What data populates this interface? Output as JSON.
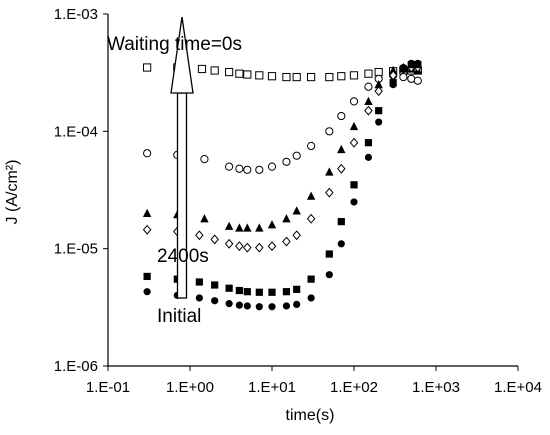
{
  "chart_data": {
    "type": "scatter",
    "title": "",
    "xlabel": "time(s)",
    "ylabel": "J (A/cm²)",
    "xscale": "log",
    "yscale": "log",
    "xlim": [
      0.1,
      10000
    ],
    "ylim": [
      1e-06,
      0.001
    ],
    "x_tick_labels": [
      "1.E-01",
      "1.E+00",
      "1.E+01",
      "1.E+02",
      "1.E+03",
      "1.E+04"
    ],
    "y_tick_labels": [
      "1.E-06",
      "1.E-05",
      "1.E-04",
      "1.E-03"
    ],
    "grid": false,
    "legend": "none",
    "annotations": [
      "Waiting time=0s",
      "2400s",
      "Initial"
    ],
    "series": [
      {
        "marker": "open-square",
        "x": [
          0.3,
          0.7,
          1.4,
          2,
          3,
          4,
          5,
          7,
          10,
          15,
          20,
          30,
          50,
          70,
          100,
          150,
          200,
          300,
          400,
          500,
          600
        ],
        "y": [
          0.00035,
          0.00035,
          0.00034,
          0.00033,
          0.00032,
          0.00031,
          0.000305,
          0.0003,
          0.000295,
          0.00029,
          0.00029,
          0.00029,
          0.00029,
          0.000295,
          0.0003,
          0.00031,
          0.00032,
          0.000325,
          0.00033,
          0.00033,
          0.00033
        ]
      },
      {
        "marker": "open-circle",
        "x": [
          0.3,
          0.7,
          1.5,
          3,
          4,
          5,
          7,
          10,
          15,
          20,
          30,
          50,
          70,
          100,
          150,
          200,
          300,
          400,
          500,
          600
        ],
        "y": [
          6.5e-05,
          6.3e-05,
          5.8e-05,
          5e-05,
          4.8e-05,
          4.7e-05,
          4.7e-05,
          5e-05,
          5.5e-05,
          6.2e-05,
          7.5e-05,
          0.0001,
          0.000135,
          0.00018,
          0.00024,
          0.00028,
          0.0003,
          0.00029,
          0.00028,
          0.00027
        ]
      },
      {
        "marker": "filled-triangle",
        "x": [
          0.3,
          0.7,
          1.5,
          3,
          4,
          5,
          7,
          10,
          15,
          20,
          30,
          50,
          70,
          100,
          150,
          200,
          300,
          400,
          500,
          600
        ],
        "y": [
          2e-05,
          1.95e-05,
          1.8e-05,
          1.55e-05,
          1.5e-05,
          1.5e-05,
          1.5e-05,
          1.6e-05,
          1.8e-05,
          2.1e-05,
          2.8e-05,
          4.5e-05,
          7e-05,
          0.00011,
          0.00018,
          0.00025,
          0.00033,
          0.00035,
          0.00034,
          0.00033
        ]
      },
      {
        "marker": "open-diamond",
        "x": [
          0.3,
          0.7,
          1.3,
          2,
          3,
          4,
          5,
          7,
          10,
          15,
          20,
          30,
          50,
          70,
          100,
          150,
          200,
          300,
          400,
          500,
          600
        ],
        "y": [
          1.45e-05,
          1.4e-05,
          1.3e-05,
          1.2e-05,
          1.1e-05,
          1.05e-05,
          1.02e-05,
          1.02e-05,
          1.05e-05,
          1.15e-05,
          1.3e-05,
          1.8e-05,
          3e-05,
          4.8e-05,
          8e-05,
          0.00015,
          0.00022,
          0.0003,
          0.00034,
          0.00035,
          0.00035
        ]
      },
      {
        "marker": "filled-square",
        "x": [
          0.3,
          0.7,
          1.3,
          2,
          3,
          4,
          5,
          7,
          10,
          15,
          20,
          30,
          50,
          70,
          100,
          150,
          200,
          300,
          400,
          500,
          600
        ],
        "y": [
          5.8e-06,
          5.5e-06,
          5.2e-06,
          4.9e-06,
          4.6e-06,
          4.4e-06,
          4.3e-06,
          4.25e-06,
          4.25e-06,
          4.3e-06,
          4.5e-06,
          5.5e-06,
          9e-06,
          1.7e-05,
          3.5e-05,
          8e-05,
          0.00015,
          0.00026,
          0.00034,
          0.00037,
          0.00037
        ]
      },
      {
        "marker": "filled-circle",
        "x": [
          0.3,
          0.7,
          1.3,
          2,
          3,
          4,
          5,
          7,
          10,
          15,
          20,
          30,
          50,
          70,
          100,
          150,
          200,
          300,
          400,
          500,
          600
        ],
        "y": [
          4.3e-06,
          4e-06,
          3.8e-06,
          3.6e-06,
          3.4e-06,
          3.3e-06,
          3.25e-06,
          3.2e-06,
          3.2e-06,
          3.25e-06,
          3.35e-06,
          3.8e-06,
          6e-06,
          1.1e-05,
          2.5e-05,
          6e-05,
          0.00012,
          0.00025,
          0.00035,
          0.00038,
          0.00038
        ]
      }
    ]
  }
}
